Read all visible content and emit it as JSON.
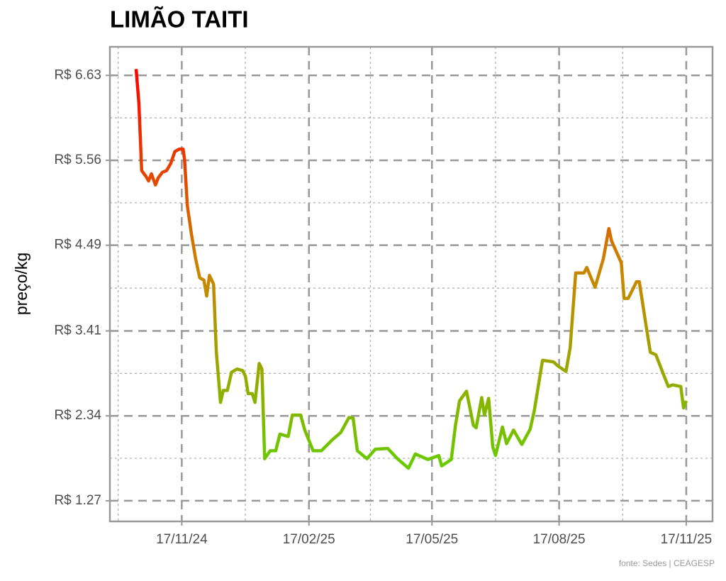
{
  "chart_data": {
    "type": "line",
    "title": "LIMÃO TAITI",
    "y_label": "preço/kg",
    "source": "fonte: Sedes | CEAGESP",
    "x": [
      "2024-10-15",
      "2024-10-17",
      "2024-10-19",
      "2024-10-22",
      "2024-10-24",
      "2024-10-26",
      "2024-10-29",
      "2024-10-31",
      "2024-11-03",
      "2024-11-06",
      "2024-11-09",
      "2024-11-12",
      "2024-11-15",
      "2024-11-18",
      "2024-11-19",
      "2024-11-21",
      "2024-11-24",
      "2024-11-27",
      "2024-11-30",
      "2024-12-03",
      "2024-12-05",
      "2024-12-07",
      "2024-12-10",
      "2024-12-12",
      "2024-12-15",
      "2024-12-17",
      "2024-12-20",
      "2024-12-23",
      "2024-12-27",
      "2024-12-31",
      "2025-01-02",
      "2025-01-04",
      "2025-01-07",
      "2025-01-09",
      "2025-01-12",
      "2025-01-14",
      "2025-01-16",
      "2025-01-20",
      "2025-01-24",
      "2025-01-27",
      "2025-02-02",
      "2025-02-05",
      "2025-02-11",
      "2025-02-14",
      "2025-02-20",
      "2025-02-26",
      "2025-03-06",
      "2025-03-12",
      "2025-03-18",
      "2025-03-21",
      "2025-03-24",
      "2025-03-31",
      "2025-04-06",
      "2025-04-15",
      "2025-04-22",
      "2025-04-30",
      "2025-05-05",
      "2025-05-14",
      "2025-05-22",
      "2025-05-24",
      "2025-05-31",
      "2025-06-03",
      "2025-06-06",
      "2025-06-11",
      "2025-06-16",
      "2025-06-18",
      "2025-06-22",
      "2025-06-24",
      "2025-06-27",
      "2025-06-30",
      "2025-07-02",
      "2025-07-07",
      "2025-07-10",
      "2025-07-15",
      "2025-07-21",
      "2025-07-27",
      "2025-07-30",
      "2025-08-05",
      "2025-08-13",
      "2025-08-16",
      "2025-08-22",
      "2025-08-25",
      "2025-08-29",
      "2025-09-04",
      "2025-09-06",
      "2025-09-12",
      "2025-09-18",
      "2025-09-22",
      "2025-09-24",
      "2025-10-01",
      "2025-10-03",
      "2025-10-06",
      "2025-10-12",
      "2025-10-14",
      "2025-10-19",
      "2025-10-22",
      "2025-10-26",
      "2025-11-01",
      "2025-11-04",
      "2025-11-07",
      "2025-11-13",
      "2025-11-15",
      "2025-11-17"
    ],
    "series": [
      {
        "values": [
          6.71,
          6.28,
          5.43,
          5.36,
          5.3,
          5.39,
          5.25,
          5.34,
          5.41,
          5.43,
          5.52,
          5.67,
          5.7,
          5.7,
          5.57,
          4.99,
          4.63,
          4.32,
          4.08,
          4.05,
          3.85,
          4.11,
          4.0,
          3.15,
          2.51,
          2.66,
          2.66,
          2.89,
          2.93,
          2.91,
          2.84,
          2.62,
          2.62,
          2.51,
          3.0,
          2.93,
          1.8,
          1.9,
          1.9,
          2.11,
          2.08,
          2.35,
          2.35,
          2.16,
          1.9,
          1.9,
          2.04,
          2.13,
          2.32,
          2.31,
          1.9,
          1.8,
          1.92,
          1.93,
          1.8,
          1.68,
          1.86,
          1.79,
          1.84,
          1.71,
          1.79,
          2.22,
          2.53,
          2.65,
          2.22,
          2.19,
          2.57,
          2.35,
          2.56,
          1.95,
          1.84,
          2.2,
          1.99,
          2.16,
          1.98,
          2.17,
          2.4,
          3.04,
          3.02,
          2.97,
          2.9,
          3.2,
          4.14,
          4.14,
          4.21,
          3.96,
          4.32,
          4.7,
          4.54,
          4.27,
          3.82,
          3.82,
          4.03,
          4.03,
          3.47,
          3.14,
          3.11,
          2.84,
          2.71,
          2.73,
          2.71,
          2.44,
          2.53
        ]
      }
    ],
    "color_scale": [
      "#ff0000",
      "#cc8400",
      "#66cc00"
    ],
    "xlim": [
      "2024-09-26",
      "2025-12-06"
    ],
    "xticks": [
      {
        "value": "2024-11-17",
        "label": "17/11/24"
      },
      {
        "value": "2025-02-17",
        "label": "17/02/25"
      },
      {
        "value": "2025-05-17",
        "label": "17/05/25"
      },
      {
        "value": "2025-08-17",
        "label": "17/08/25"
      },
      {
        "value": "2025-11-17",
        "label": "17/11/25"
      }
    ],
    "ylim": [
      1.01,
      6.99
    ],
    "yticks": [
      {
        "value": 1.27,
        "label": "R$ 1.27"
      },
      {
        "value": 2.34,
        "label": "R$ 2.34"
      },
      {
        "value": 3.41,
        "label": "R$ 3.41"
      },
      {
        "value": 4.49,
        "label": "R$ 4.49"
      },
      {
        "value": 5.56,
        "label": "R$ 5.56"
      },
      {
        "value": 6.63,
        "label": "R$ 6.63"
      }
    ],
    "grid": true
  }
}
